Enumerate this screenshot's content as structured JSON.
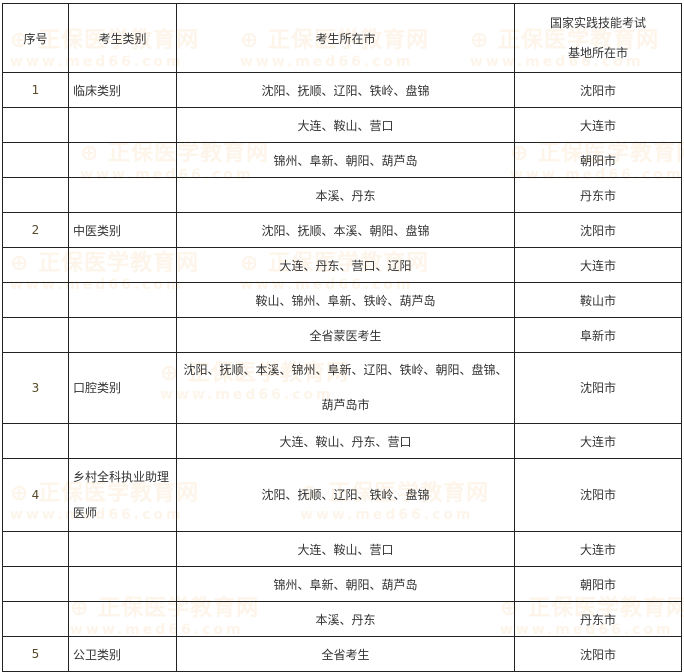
{
  "watermark": {
    "brand": "正保医学教育网",
    "url": "www.med66.com"
  },
  "table": {
    "headers": [
      "序号",
      "考生类别",
      "考生所在市",
      "国家实践技能考试基地所在市"
    ],
    "header_col4_lines": [
      "国家实践技能考试",
      "基地所在市"
    ],
    "rows": [
      {
        "no": "1",
        "category": "临床类别",
        "cities": "沈阳、抚顺、辽阳、铁岭、盘锦",
        "base": "沈阳市"
      },
      {
        "no": "",
        "category": "",
        "cities": "大连、鞍山、营口",
        "base": "大连市"
      },
      {
        "no": "",
        "category": "",
        "cities": "锦州、阜新、朝阳、葫芦岛",
        "base": "朝阳市"
      },
      {
        "no": "",
        "category": "",
        "cities": "本溪、丹东",
        "base": "丹东市"
      },
      {
        "no": "2",
        "category": "中医类别",
        "cities": "沈阳、抚顺、本溪、朝阳、盘锦",
        "base": "沈阳市"
      },
      {
        "no": "",
        "category": "",
        "cities": "大连、丹东、营口、辽阳",
        "base": "大连市"
      },
      {
        "no": "",
        "category": "",
        "cities": "鞍山、锦州、阜新、铁岭、葫芦岛",
        "base": "鞍山市"
      },
      {
        "no": "",
        "category": "",
        "cities": "全省蒙医考生",
        "base": "阜新市"
      },
      {
        "no": "3",
        "category": "口腔类别",
        "cities": "沈阳、抚顺、本溪、锦州、阜新、辽阳、铁岭、朝阳、盘锦、葫芦岛市",
        "base": "沈阳市"
      },
      {
        "no": "",
        "category": "",
        "cities": "大连、鞍山、丹东、营口",
        "base": "大连市"
      },
      {
        "no": "4",
        "category": "乡村全科执业助理医师",
        "cities": "沈阳、抚顺、辽阳、铁岭、盘锦",
        "base": "沈阳市"
      },
      {
        "no": "",
        "category": "",
        "cities": "大连、鞍山、营口",
        "base": "大连市"
      },
      {
        "no": "",
        "category": "",
        "cities": "锦州、阜新、朝阳、葫芦岛",
        "base": "朝阳市"
      },
      {
        "no": "",
        "category": "",
        "cities": "本溪、丹东",
        "base": "丹东市"
      },
      {
        "no": "5",
        "category": "公卫类别",
        "cities": "全省考生",
        "base": "沈阳市"
      }
    ]
  }
}
